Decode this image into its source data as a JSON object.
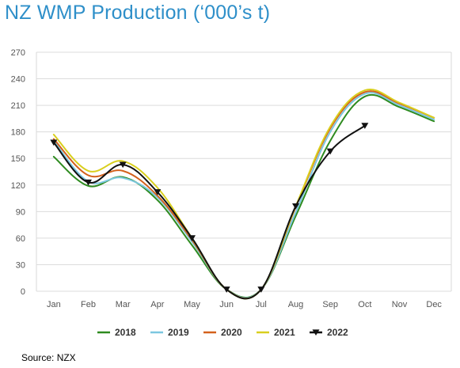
{
  "title": "NZ WMP Production (‘000’s t)",
  "source": "Source: NZX",
  "chart_data": {
    "type": "line",
    "title": "NZ WMP Production (‘000’s t)",
    "xlabel": "",
    "ylabel": "",
    "categories": [
      "Jan",
      "Feb",
      "Mar",
      "Apr",
      "May",
      "Jun",
      "Jul",
      "Aug",
      "Sep",
      "Oct",
      "Nov",
      "Dec"
    ],
    "ylim": [
      0,
      270
    ],
    "yticks": [
      0,
      30,
      60,
      90,
      120,
      150,
      180,
      210,
      240,
      270
    ],
    "grid": "horizontal",
    "legend_position": "bottom",
    "series": [
      {
        "name": "2018",
        "color": "#2e8b1f",
        "marker": "none",
        "values": [
          152,
          119,
          129,
          103,
          52,
          2,
          2,
          85,
          170,
          220,
          208,
          192
        ]
      },
      {
        "name": "2019",
        "color": "#7cc7e0",
        "marker": "none",
        "values": [
          170,
          124,
          128,
          106,
          56,
          2,
          2,
          89,
          180,
          223,
          210,
          194
        ]
      },
      {
        "name": "2020",
        "color": "#d4611c",
        "marker": "none",
        "values": [
          172,
          131,
          136,
          108,
          58,
          2,
          2,
          95,
          184,
          225,
          212,
          196
        ]
      },
      {
        "name": "2021",
        "color": "#d9cf1e",
        "marker": "none",
        "values": [
          177,
          136,
          147,
          117,
          60,
          2,
          2,
          96,
          186,
          227,
          213,
          196
        ]
      },
      {
        "name": "2022",
        "color": "#111111",
        "marker": "triangle-down",
        "values": [
          168,
          123,
          143,
          112,
          60,
          2,
          2,
          96,
          158,
          187,
          null,
          null
        ]
      }
    ]
  }
}
